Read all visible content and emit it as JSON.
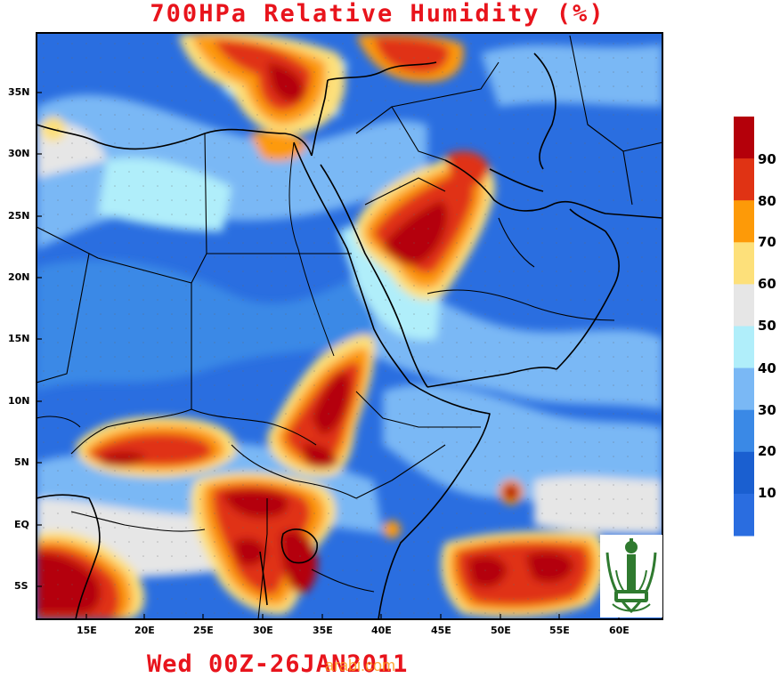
{
  "title": "700HPa Relative Humidity (%)",
  "footer": "Wed 00Z-26JAN2011",
  "watermark": "arabi.com",
  "map": {
    "variable": "Relative Humidity",
    "level": "700 hPa",
    "unit": "%",
    "region": "Middle East / NE Africa",
    "lon_labels": [
      "15E",
      "20E",
      "25E",
      "30E",
      "35E",
      "40E",
      "45E",
      "50E",
      "55E",
      "60E"
    ],
    "lat_labels": [
      "35N",
      "30N",
      "25N",
      "20N",
      "15N",
      "10N",
      "5N",
      "EQ",
      "5S"
    ],
    "lon_range": [
      11,
      63
    ],
    "lat_range": [
      -8,
      40
    ]
  },
  "colorbar": {
    "labels": [
      "90",
      "80",
      "70",
      "60",
      "50",
      "40",
      "30",
      "20",
      "10"
    ],
    "colors": [
      "#b4000a",
      "#e03314",
      "#fd9a08",
      "#fde07a",
      "#e6e6e6",
      "#b0eefa",
      "#7ab8f5",
      "#3a89e6",
      "#1a5fd0",
      "#2a6de0"
    ]
  },
  "colors": {
    "title": "#e8141c",
    "ocean": "#2d6fd9"
  }
}
